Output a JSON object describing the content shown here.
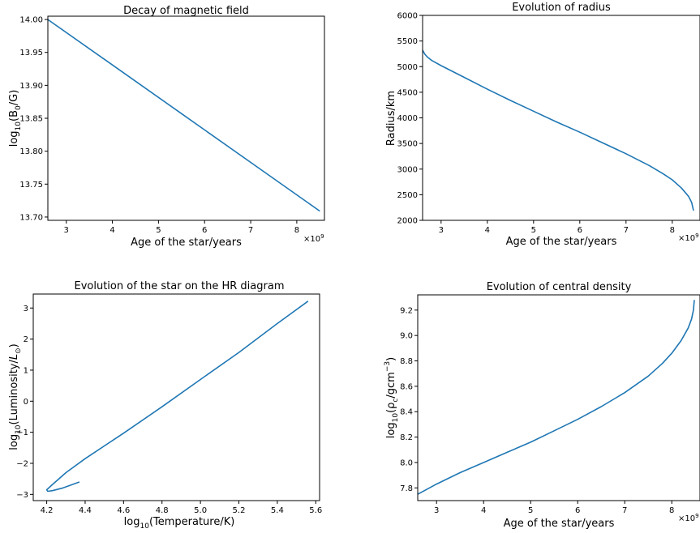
{
  "chart_data": [
    {
      "type": "line",
      "title": "Decay of magnetic field",
      "xlabel": "Age of the star/years",
      "ylabel_main": "log",
      "ylabel_sub": "10",
      "ylabel_rest": "(B",
      "ylabel_sub2": "0",
      "ylabel_end": "/G)",
      "x_offset_base": "×10",
      "x_offset_exp": "9",
      "xlim": [
        2600000000.0,
        8600000000.0
      ],
      "ylim": [
        13.695,
        14.005
      ],
      "xticks": [
        3000000000.0,
        4000000000.0,
        5000000000.0,
        6000000000.0,
        7000000000.0,
        8000000000.0
      ],
      "xticklabels": [
        "3",
        "4",
        "5",
        "6",
        "7",
        "8"
      ],
      "yticks": [
        13.7,
        13.75,
        13.8,
        13.85,
        13.9,
        13.95,
        14.0
      ],
      "yticklabels": [
        "13.70",
        "13.75",
        "13.80",
        "13.85",
        "13.90",
        "13.95",
        "14.00"
      ],
      "series": [
        {
          "color": "#1f77b4",
          "x": [
            2600000000.0,
            4000000000.0,
            5500000000.0,
            7000000000.0,
            8500000000.0
          ],
          "y": [
            14.0,
            13.931,
            13.857,
            13.783,
            13.709
          ]
        }
      ]
    },
    {
      "type": "line",
      "title": "Evolution of radius",
      "xlabel": "Age of the star/years",
      "ylabel": "Radius/km",
      "x_offset_base": "×10",
      "x_offset_exp": "9",
      "xlim": [
        2600000000.0,
        8600000000.0
      ],
      "ylim": [
        2000,
        6000
      ],
      "xticks": [
        3000000000.0,
        4000000000.0,
        5000000000.0,
        6000000000.0,
        7000000000.0,
        8000000000.0
      ],
      "xticklabels": [
        "3",
        "4",
        "5",
        "6",
        "7",
        "8"
      ],
      "yticks": [
        2000,
        2500,
        3000,
        3500,
        4000,
        4500,
        5000,
        5500,
        6000
      ],
      "yticklabels": [
        "2000",
        "2500",
        "3000",
        "3500",
        "4000",
        "4500",
        "5000",
        "5500",
        "6000"
      ],
      "series": [
        {
          "color": "#1f77b4",
          "x": [
            2600000000.0,
            2650000000.0,
            2700000000.0,
            2800000000.0,
            3000000000.0,
            3500000000.0,
            4000000000.0,
            4500000000.0,
            5000000000.0,
            5500000000.0,
            6000000000.0,
            6500000000.0,
            7000000000.0,
            7500000000.0,
            7800000000.0,
            8000000000.0,
            8200000000.0,
            8350000000.0,
            8420000000.0,
            8460000000.0
          ],
          "y": [
            5320,
            5240,
            5190,
            5120,
            5020,
            4790,
            4560,
            4340,
            4130,
            3920,
            3720,
            3510,
            3300,
            3070,
            2910,
            2790,
            2630,
            2470,
            2350,
            2190
          ]
        }
      ]
    },
    {
      "type": "line",
      "title": "Evolution of the star on the HR diagram",
      "xlabel_main": "log",
      "xlabel_sub": "10",
      "xlabel_rest": "(Temperature/K)",
      "ylabel_main": "log",
      "ylabel_sub": "10",
      "ylabel_rest": "(Luminosity/",
      "ylabel_L": "L",
      "ylabel_sun": "⊙",
      "ylabel_end": ")",
      "xlim": [
        4.13,
        5.62
      ],
      "ylim": [
        -3.2,
        3.45
      ],
      "xticks": [
        4.2,
        4.4,
        4.6,
        4.8,
        5.0,
        5.2,
        5.4,
        5.6
      ],
      "xticklabels": [
        "4.2",
        "4.4",
        "4.6",
        "4.8",
        "5.0",
        "5.2",
        "5.4",
        "5.6"
      ],
      "yticks": [
        -3,
        -2,
        -1,
        0,
        1,
        2,
        3
      ],
      "yticklabels": [
        "−3",
        "−2",
        "−1",
        "0",
        "1",
        "2",
        "3"
      ],
      "series": [
        {
          "color": "#1f77b4",
          "x": [
            5.56,
            5.4,
            5.2,
            5.0,
            4.8,
            4.6,
            4.4,
            4.3,
            4.23,
            4.2,
            4.205,
            4.23,
            4.28,
            4.37
          ],
          "y": [
            3.22,
            2.5,
            1.57,
            0.7,
            -0.18,
            -1.03,
            -1.85,
            -2.3,
            -2.68,
            -2.85,
            -2.9,
            -2.88,
            -2.8,
            -2.6
          ]
        }
      ]
    },
    {
      "type": "line",
      "title": "Evolution of central density",
      "xlabel": "Age of the star/years",
      "ylabel_main": "log",
      "ylabel_sub": "10",
      "ylabel_rest": "(ρ",
      "ylabel_sub2": "c",
      "ylabel_unit": "/gcm",
      "ylabel_sup": "−3",
      "ylabel_end": ")",
      "x_offset_base": "×10",
      "x_offset_exp": "9",
      "xlim": [
        2600000000.0,
        8600000000.0
      ],
      "ylim": [
        7.7,
        9.32
      ],
      "xticks": [
        3000000000.0,
        4000000000.0,
        5000000000.0,
        6000000000.0,
        7000000000.0,
        8000000000.0
      ],
      "xticklabels": [
        "3",
        "4",
        "5",
        "6",
        "7",
        "8"
      ],
      "yticks": [
        7.8,
        8.0,
        8.2,
        8.4,
        8.6,
        8.8,
        9.0,
        9.2
      ],
      "yticklabels": [
        "7.8",
        "8.0",
        "8.2",
        "8.4",
        "8.6",
        "8.8",
        "9.0",
        "9.2"
      ],
      "series": [
        {
          "color": "#1f77b4",
          "x": [
            2600000000.0,
            3000000000.0,
            3500000000.0,
            4000000000.0,
            4500000000.0,
            5000000000.0,
            5500000000.0,
            6000000000.0,
            6500000000.0,
            7000000000.0,
            7500000000.0,
            7800000000.0,
            8000000000.0,
            8200000000.0,
            8350000000.0,
            8420000000.0,
            8460000000.0,
            8480000000.0
          ],
          "y": [
            7.75,
            7.83,
            7.92,
            8.0,
            8.08,
            8.16,
            8.25,
            8.34,
            8.44,
            8.55,
            8.68,
            8.78,
            8.86,
            8.96,
            9.06,
            9.13,
            9.2,
            9.28
          ]
        }
      ]
    }
  ]
}
